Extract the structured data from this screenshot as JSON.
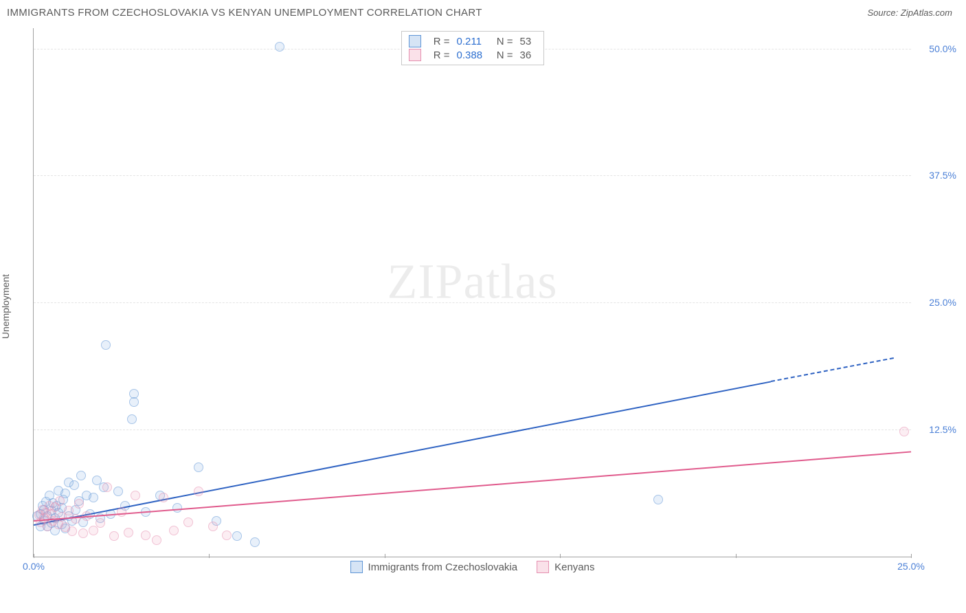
{
  "header": {
    "title": "IMMIGRANTS FROM CZECHOSLOVAKIA VS KENYAN UNEMPLOYMENT CORRELATION CHART",
    "source_prefix": "Source: ",
    "source_name": "ZipAtlas.com"
  },
  "axes": {
    "y_label": "Unemployment",
    "x_min": 0.0,
    "x_max": 25.0,
    "y_min": 0.0,
    "y_max": 52.0,
    "y_ticks": [
      {
        "v": 12.5,
        "label": "12.5%"
      },
      {
        "v": 25.0,
        "label": "25.0%"
      },
      {
        "v": 37.5,
        "label": "37.5%"
      },
      {
        "v": 50.0,
        "label": "50.0%"
      }
    ],
    "x_ticks": [
      {
        "v": 0.0,
        "label": "0.0%"
      },
      {
        "v": 5.0,
        "label": ""
      },
      {
        "v": 10.0,
        "label": ""
      },
      {
        "v": 15.0,
        "label": ""
      },
      {
        "v": 20.0,
        "label": ""
      },
      {
        "v": 25.0,
        "label": "25.0%"
      }
    ],
    "tick_label_color": "#4a7fd6",
    "grid_color": "#e4e4e4"
  },
  "series": [
    {
      "id": "czech",
      "label": "Immigrants from Czechoslovakia",
      "color_fill": "rgba(120,165,222,0.30)",
      "color_stroke": "#5e95d6",
      "r_value": "0.211",
      "n_value": "53",
      "marker_radius": 7,
      "trend": {
        "x1": 0.0,
        "y1": 3.2,
        "x2": 21.0,
        "y2": 17.3,
        "dash_after_x": 21.0,
        "x2d": 24.5,
        "y2d": 19.6,
        "color": "#2e62c2",
        "width": 2
      },
      "points": [
        {
          "x": 0.1,
          "y": 4.0
        },
        {
          "x": 0.2,
          "y": 4.2
        },
        {
          "x": 0.2,
          "y": 3.0
        },
        {
          "x": 0.25,
          "y": 5.0
        },
        {
          "x": 0.3,
          "y": 3.6
        },
        {
          "x": 0.3,
          "y": 4.6
        },
        {
          "x": 0.35,
          "y": 5.4
        },
        {
          "x": 0.4,
          "y": 4.0
        },
        {
          "x": 0.4,
          "y": 3.0
        },
        {
          "x": 0.45,
          "y": 6.0
        },
        {
          "x": 0.5,
          "y": 4.5
        },
        {
          "x": 0.5,
          "y": 3.3
        },
        {
          "x": 0.55,
          "y": 5.3
        },
        {
          "x": 0.6,
          "y": 3.8
        },
        {
          "x": 0.6,
          "y": 2.6
        },
        {
          "x": 0.65,
          "y": 5.0
        },
        {
          "x": 0.7,
          "y": 4.3
        },
        {
          "x": 0.7,
          "y": 6.5
        },
        {
          "x": 0.8,
          "y": 3.2
        },
        {
          "x": 0.8,
          "y": 4.8
        },
        {
          "x": 0.85,
          "y": 5.6
        },
        {
          "x": 0.9,
          "y": 2.8
        },
        {
          "x": 0.9,
          "y": 6.2
        },
        {
          "x": 1.0,
          "y": 4.0
        },
        {
          "x": 1.0,
          "y": 7.3
        },
        {
          "x": 1.1,
          "y": 3.5
        },
        {
          "x": 1.15,
          "y": 7.0
        },
        {
          "x": 1.2,
          "y": 4.6
        },
        {
          "x": 1.3,
          "y": 5.5
        },
        {
          "x": 1.35,
          "y": 8.0
        },
        {
          "x": 1.4,
          "y": 3.4
        },
        {
          "x": 1.5,
          "y": 6.0
        },
        {
          "x": 1.6,
          "y": 4.2
        },
        {
          "x": 1.7,
          "y": 5.8
        },
        {
          "x": 1.8,
          "y": 7.5
        },
        {
          "x": 1.9,
          "y": 3.8
        },
        {
          "x": 2.0,
          "y": 6.8
        },
        {
          "x": 2.05,
          "y": 20.8
        },
        {
          "x": 2.2,
          "y": 4.2
        },
        {
          "x": 2.4,
          "y": 6.4
        },
        {
          "x": 2.6,
          "y": 5.0
        },
        {
          "x": 2.8,
          "y": 13.5
        },
        {
          "x": 2.85,
          "y": 15.2
        },
        {
          "x": 2.85,
          "y": 16.0
        },
        {
          "x": 3.2,
          "y": 4.4
        },
        {
          "x": 3.6,
          "y": 6.0
        },
        {
          "x": 4.1,
          "y": 4.8
        },
        {
          "x": 4.7,
          "y": 8.8
        },
        {
          "x": 5.2,
          "y": 3.5
        },
        {
          "x": 5.8,
          "y": 2.0
        },
        {
          "x": 6.3,
          "y": 1.4
        },
        {
          "x": 7.0,
          "y": 50.2
        },
        {
          "x": 17.8,
          "y": 5.6
        }
      ]
    },
    {
      "id": "kenyan",
      "label": "Kenyans",
      "color_fill": "rgba(236,148,177,0.28)",
      "color_stroke": "#e58fb0",
      "r_value": "0.388",
      "n_value": "36",
      "marker_radius": 7,
      "trend": {
        "x1": 0.0,
        "y1": 3.6,
        "x2": 25.0,
        "y2": 10.4,
        "dash_after_x": 25.0,
        "x2d": 25.0,
        "y2d": 10.4,
        "color": "#e05a8c",
        "width": 2
      },
      "points": [
        {
          "x": 0.15,
          "y": 4.1
        },
        {
          "x": 0.2,
          "y": 3.4
        },
        {
          "x": 0.25,
          "y": 4.6
        },
        {
          "x": 0.3,
          "y": 3.8
        },
        {
          "x": 0.35,
          "y": 4.3
        },
        {
          "x": 0.4,
          "y": 3.0
        },
        {
          "x": 0.45,
          "y": 5.0
        },
        {
          "x": 0.5,
          "y": 4.2
        },
        {
          "x": 0.55,
          "y": 3.5
        },
        {
          "x": 0.6,
          "y": 4.9
        },
        {
          "x": 0.7,
          "y": 3.2
        },
        {
          "x": 0.75,
          "y": 5.5
        },
        {
          "x": 0.8,
          "y": 3.9
        },
        {
          "x": 0.9,
          "y": 2.9
        },
        {
          "x": 1.0,
          "y": 4.5
        },
        {
          "x": 1.1,
          "y": 2.5
        },
        {
          "x": 1.2,
          "y": 3.7
        },
        {
          "x": 1.3,
          "y": 5.2
        },
        {
          "x": 1.4,
          "y": 2.3
        },
        {
          "x": 1.5,
          "y": 4.0
        },
        {
          "x": 1.7,
          "y": 2.6
        },
        {
          "x": 1.9,
          "y": 3.3
        },
        {
          "x": 2.1,
          "y": 6.8
        },
        {
          "x": 2.3,
          "y": 2.0
        },
        {
          "x": 2.5,
          "y": 4.4
        },
        {
          "x": 2.7,
          "y": 2.4
        },
        {
          "x": 2.9,
          "y": 6.0
        },
        {
          "x": 3.2,
          "y": 2.1
        },
        {
          "x": 3.5,
          "y": 1.6
        },
        {
          "x": 3.7,
          "y": 5.8
        },
        {
          "x": 4.0,
          "y": 2.6
        },
        {
          "x": 4.4,
          "y": 3.4
        },
        {
          "x": 4.7,
          "y": 6.4
        },
        {
          "x": 5.1,
          "y": 3.0
        },
        {
          "x": 5.5,
          "y": 2.1
        },
        {
          "x": 24.8,
          "y": 12.3
        }
      ]
    }
  ],
  "legend_top": {
    "r_label": "R =",
    "n_label": "N ="
  },
  "watermark": {
    "zip": "ZIP",
    "atlas": "atlas"
  },
  "plot_style": {
    "background": "#ffffff"
  }
}
